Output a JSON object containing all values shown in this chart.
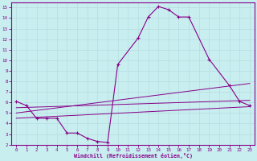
{
  "xlabel": "Windchill (Refroidissement éolien,°C)",
  "bg_color": "#c8eef0",
  "grid_color": "#b8dfe1",
  "line_color": "#880088",
  "xlim": [
    -0.5,
    23.5
  ],
  "ylim": [
    2,
    15.5
  ],
  "xticks": [
    0,
    1,
    2,
    3,
    4,
    5,
    6,
    7,
    8,
    9,
    10,
    11,
    12,
    13,
    14,
    15,
    16,
    17,
    18,
    19,
    20,
    21,
    22,
    23
  ],
  "yticks": [
    2,
    3,
    4,
    5,
    6,
    7,
    8,
    9,
    10,
    11,
    12,
    13,
    14,
    15
  ],
  "main_x": [
    0,
    1,
    2,
    3,
    4,
    5,
    6,
    7,
    8,
    9,
    10,
    12,
    13,
    14,
    15,
    16,
    17,
    19,
    21,
    22,
    23
  ],
  "main_y": [
    6.1,
    5.7,
    4.5,
    4.5,
    4.5,
    3.1,
    3.1,
    2.6,
    2.3,
    2.2,
    9.6,
    12.1,
    14.1,
    15.1,
    14.8,
    14.1,
    14.1,
    10.1,
    7.6,
    6.1,
    5.7
  ],
  "line1_x": [
    0,
    23
  ],
  "line1_y": [
    5.5,
    6.2
  ],
  "line2_x": [
    0,
    23
  ],
  "line2_y": [
    5.0,
    7.8
  ],
  "line3_x": [
    0,
    23
  ],
  "line3_y": [
    4.5,
    5.6
  ]
}
